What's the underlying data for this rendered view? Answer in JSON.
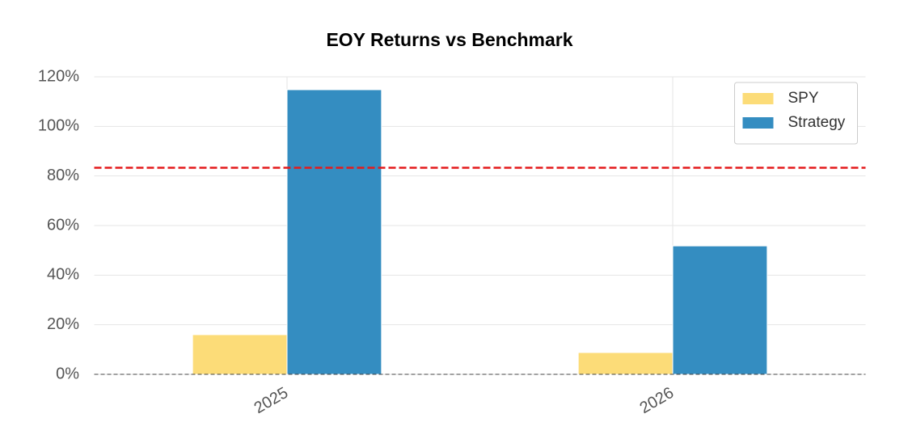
{
  "chart_data": {
    "type": "bar",
    "title": "EOY Returns  vs Benchmark",
    "categories": [
      "2025",
      "2026"
    ],
    "series": [
      {
        "name": "SPY",
        "color": "#fcdc78",
        "values": [
          16.0,
          8.8
        ]
      },
      {
        "name": "Strategy",
        "color": "#348dc1",
        "values": [
          114.8,
          51.8
        ]
      }
    ],
    "mean_line": {
      "value": 83.3,
      "color": "#e41a1c"
    },
    "ylim": [
      0,
      120
    ],
    "yticks": [
      {
        "value": 0,
        "label": "0%"
      },
      {
        "value": 20,
        "label": "20%"
      },
      {
        "value": 40,
        "label": "40%"
      },
      {
        "value": 60,
        "label": "60%"
      },
      {
        "value": 80,
        "label": "80%"
      },
      {
        "value": 100,
        "label": "100%"
      },
      {
        "value": 120,
        "label": "120%"
      }
    ],
    "grid": true,
    "legend": "upper right"
  }
}
